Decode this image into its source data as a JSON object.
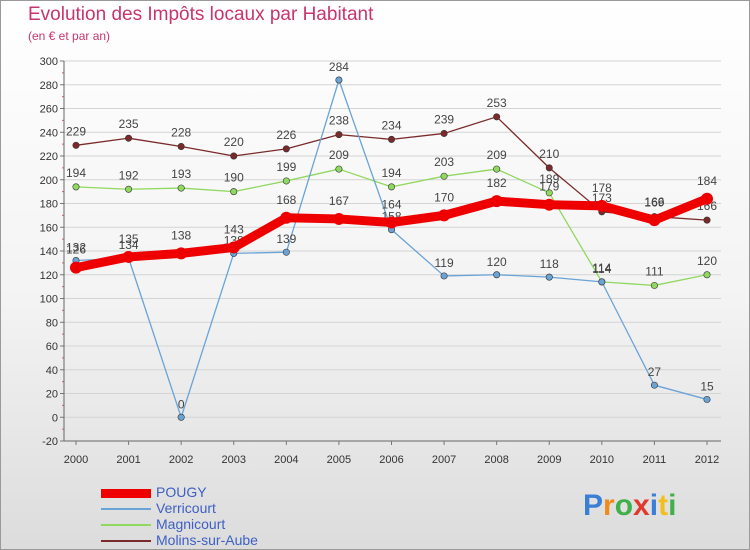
{
  "title": "Evolution des Impôts locaux par Habitant",
  "subtitle": "(en € et par an)",
  "brand": {
    "letters": [
      "P",
      "r",
      "o",
      "x",
      "i",
      "t",
      "i"
    ],
    "colors": [
      "#3a7fd5",
      "#f08a1c",
      "#3fb04a",
      "#e03a2d",
      "#3a7fd5",
      "#f2c01c",
      "#3fb04a"
    ]
  },
  "chart_data": {
    "type": "line",
    "x": [
      "2000",
      "2001",
      "2002",
      "2003",
      "2004",
      "2005",
      "2006",
      "2007",
      "2008",
      "2009",
      "2010",
      "2011",
      "2012"
    ],
    "y_ticks": [
      "-20",
      "0",
      "20",
      "40",
      "60",
      "80",
      "100",
      "120",
      "140",
      "160",
      "180",
      "200",
      "220",
      "240",
      "260",
      "280",
      "300"
    ],
    "ylim": [
      -20,
      300
    ],
    "series": [
      {
        "name": "POUGY",
        "color": "#ee0000",
        "values": [
          126,
          135,
          138,
          143,
          168,
          167,
          164,
          170,
          182,
          179,
          178,
          166,
          184
        ],
        "labels": [
          "126",
          "135",
          "138",
          "143",
          "168",
          "167",
          "164",
          "170",
          "182",
          "179",
          "178",
          "166",
          "184"
        ]
      },
      {
        "name": "Verricourt",
        "color": "#6aa3d6",
        "values": [
          132,
          134,
          0,
          138,
          139,
          284,
          158,
          119,
          120,
          118,
          114,
          27,
          15
        ],
        "labels": [
          "132",
          "134",
          "0",
          "138",
          "139",
          "284",
          "158",
          "119",
          "120",
          "118",
          "114",
          "27",
          "15"
        ]
      },
      {
        "name": "Magnicourt",
        "color": "#90d860",
        "values": [
          194,
          192,
          193,
          190,
          199,
          209,
          194,
          203,
          209,
          189,
          114,
          111,
          120
        ],
        "labels": [
          "194",
          "192",
          "193",
          "190",
          "199",
          "209",
          "194",
          "203",
          "209",
          "189",
          "114",
          "111",
          "120"
        ]
      },
      {
        "name": "Molins-sur-Aube",
        "color": "#7a2a2a",
        "values": [
          229,
          235,
          228,
          220,
          226,
          238,
          234,
          239,
          253,
          210,
          173,
          169,
          166
        ],
        "labels": [
          "229",
          "235",
          "228",
          "220",
          "226",
          "238",
          "234",
          "239",
          "253",
          "210",
          "173",
          "169",
          "166"
        ]
      }
    ]
  }
}
